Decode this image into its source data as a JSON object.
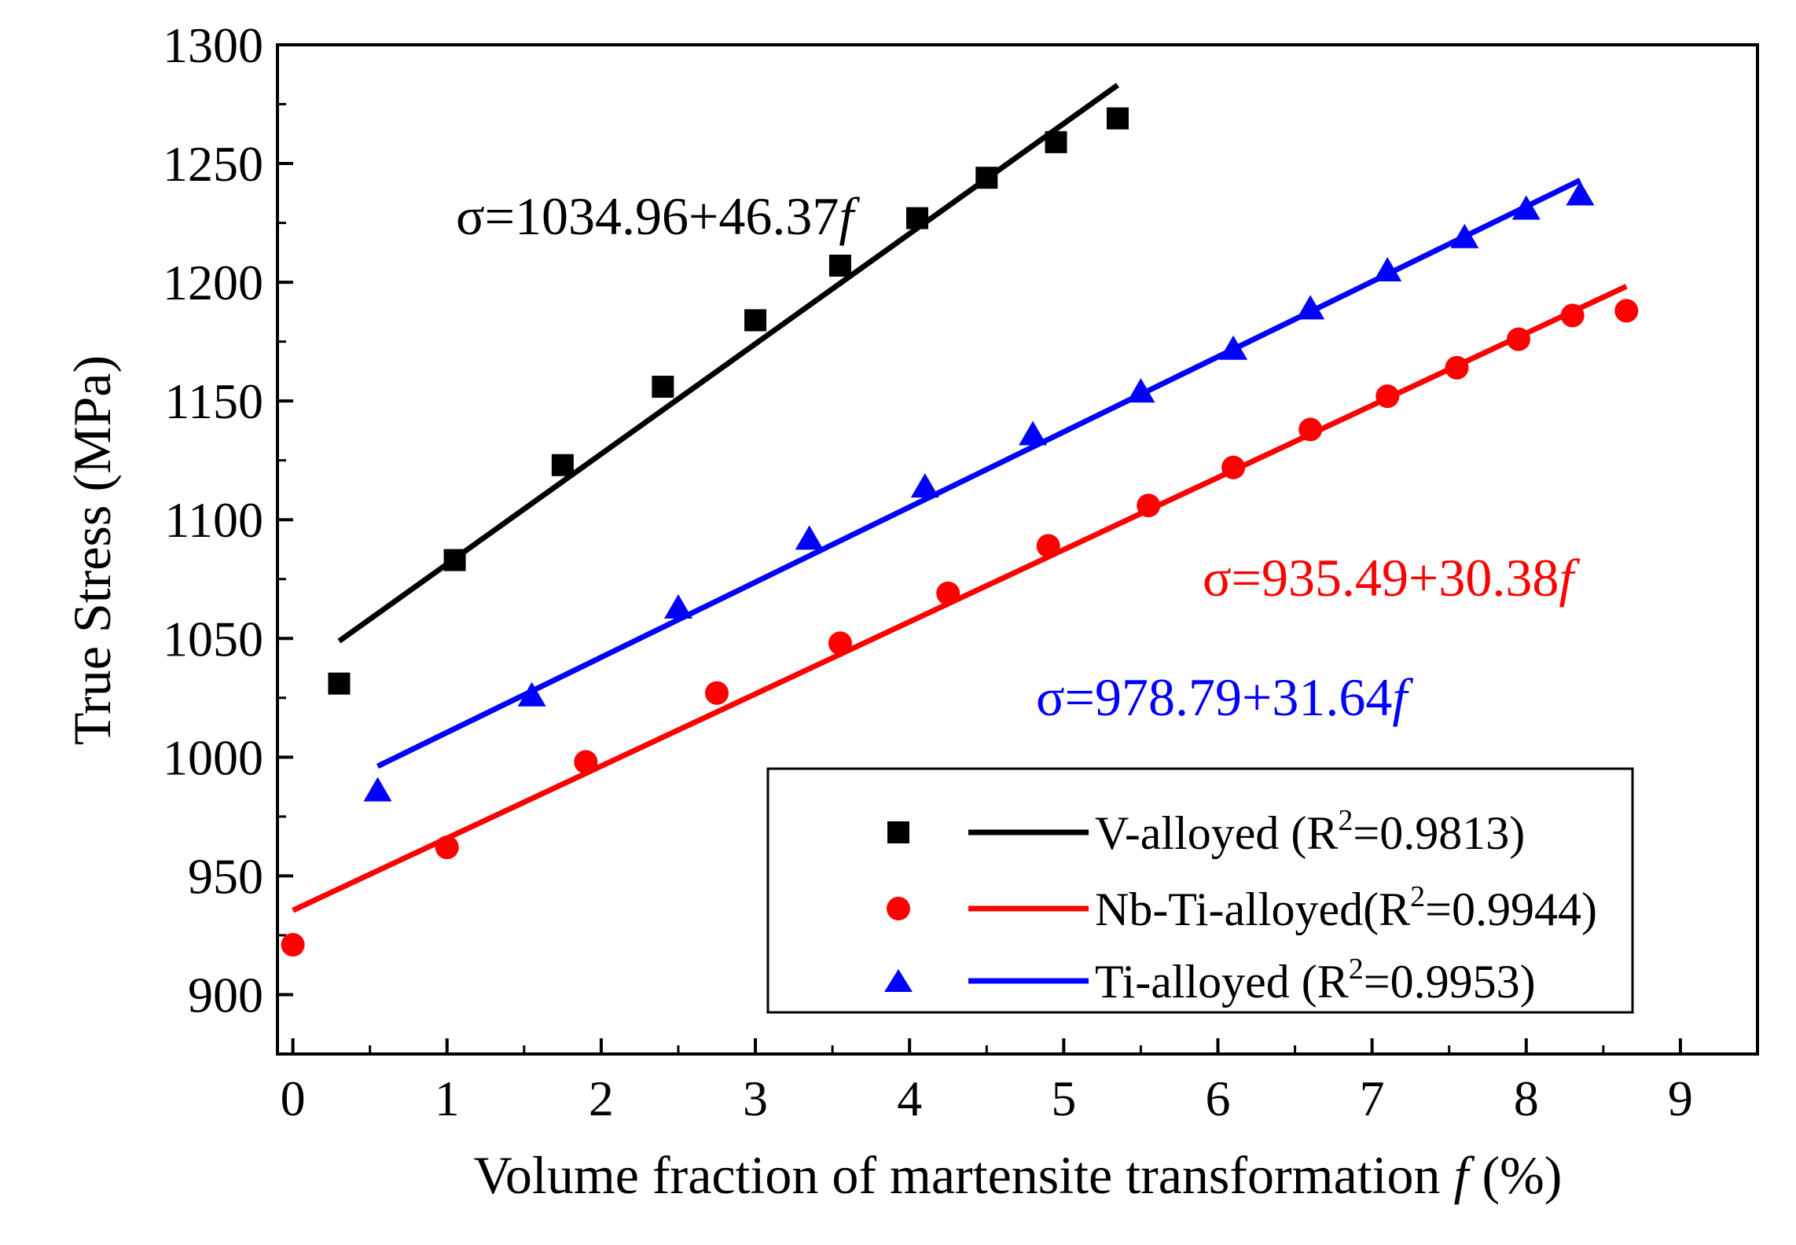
{
  "chart_data": {
    "type": "scatter",
    "xlabel_main": "Volume fraction of martensite transformation ",
    "xlabel_var": "f",
    "xlabel_unit": " (%)",
    "ylabel": "True Stress (MPa)",
    "xlim": [
      -0.1,
      9.5
    ],
    "ylim": [
      875,
      1300
    ],
    "x_ticks": [
      0,
      1,
      2,
      3,
      4,
      5,
      6,
      7,
      8,
      9
    ],
    "y_ticks": [
      900,
      950,
      1000,
      1050,
      1100,
      1150,
      1200,
      1250,
      1300
    ],
    "series": [
      {
        "name": "V-alloyed",
        "legend_label": "V-alloyed (R",
        "legend_sup": "2",
        "legend_tail": "=0.9813)",
        "marker": "square",
        "color": "#000000",
        "points": [
          [
            0.3,
            1031
          ],
          [
            1.05,
            1083
          ],
          [
            1.75,
            1123
          ],
          [
            2.4,
            1156
          ],
          [
            3.0,
            1184
          ],
          [
            3.55,
            1207
          ],
          [
            4.05,
            1227
          ],
          [
            4.5,
            1244
          ],
          [
            4.95,
            1259
          ],
          [
            5.35,
            1269
          ]
        ],
        "fit": {
          "intercept": 1034.96,
          "slope": 46.37,
          "x_range": [
            0.3,
            5.35
          ]
        },
        "equation_prefix": "σ=1034.96+46.37",
        "equation_var": "f"
      },
      {
        "name": "Nb-Ti-alloyed",
        "legend_label": "Nb-Ti-alloyed(R",
        "legend_sup": "2",
        "legend_tail": "=0.9944)",
        "marker": "circle",
        "color": "#ff0000",
        "points": [
          [
            0,
            921
          ],
          [
            1.0,
            962
          ],
          [
            1.9,
            998
          ],
          [
            2.75,
            1027
          ],
          [
            3.55,
            1048
          ],
          [
            4.25,
            1069
          ],
          [
            4.9,
            1089
          ],
          [
            5.55,
            1106
          ],
          [
            6.1,
            1122
          ],
          [
            6.6,
            1138
          ],
          [
            7.1,
            1152
          ],
          [
            7.55,
            1164
          ],
          [
            7.95,
            1176
          ],
          [
            8.3,
            1186
          ],
          [
            8.65,
            1188
          ]
        ],
        "fit": {
          "intercept": 935.49,
          "slope": 30.38,
          "x_range": [
            0.0,
            8.65
          ]
        },
        "equation_prefix": "σ=935.49+30.38",
        "equation_var": "f"
      },
      {
        "name": "Ti-alloyed",
        "legend_label": "Ti-alloyed (R",
        "legend_sup": "2",
        "legend_tail": "=0.9953)",
        "marker": "triangle",
        "color": "#0000ff",
        "points": [
          [
            0.55,
            986
          ],
          [
            1.55,
            1026
          ],
          [
            2.5,
            1063
          ],
          [
            3.35,
            1092
          ],
          [
            4.1,
            1114
          ],
          [
            4.8,
            1136
          ],
          [
            5.5,
            1154
          ],
          [
            6.1,
            1172
          ],
          [
            6.6,
            1189
          ],
          [
            7.1,
            1205
          ],
          [
            7.6,
            1219
          ],
          [
            8.0,
            1231
          ],
          [
            8.35,
            1237
          ]
        ],
        "fit": {
          "intercept": 978.79,
          "slope": 31.64,
          "x_range": [
            0.55,
            8.35
          ]
        },
        "equation_prefix": "σ=978.79+31.64",
        "equation_var": "f"
      }
    ]
  }
}
